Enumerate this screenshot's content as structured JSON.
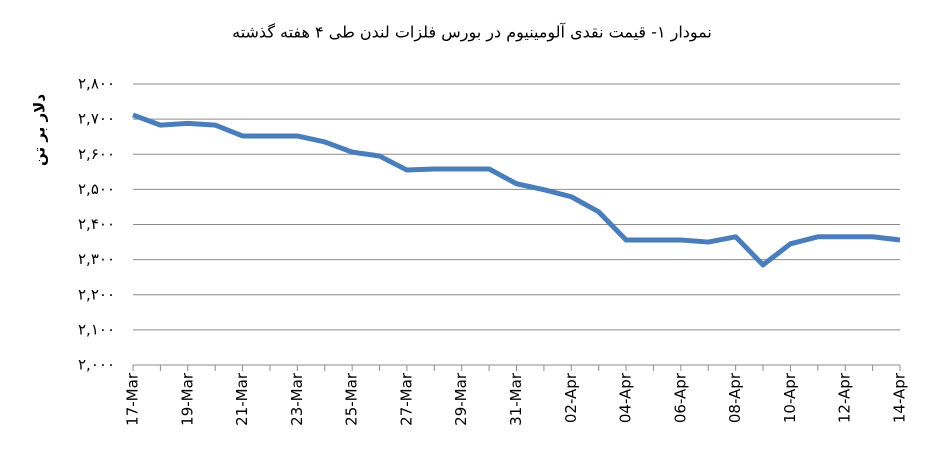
{
  "chart_data": {
    "type": "line",
    "title": "نمودار ۱- قیمت نقدی آلومینیوم در بورس فلزات لندن طی ۴ هفته گذشته",
    "y_label": "دلار بر تن",
    "categories": [
      "17-Mar",
      null,
      "19-Mar",
      null,
      "21-Mar",
      null,
      "23-Mar",
      null,
      "25-Mar",
      null,
      "27-Mar",
      null,
      "29-Mar",
      null,
      "31-Mar",
      null,
      "02-Apr",
      null,
      "04-Apr",
      null,
      "06-Apr",
      null,
      "08-Apr",
      null,
      "10-Apr",
      null,
      "12-Apr",
      null,
      "14-Apr"
    ],
    "series": [
      {
        "name": "Aluminium",
        "color": "#4a7ebb",
        "values": [
          2712,
          2683,
          2688,
          2683,
          2652,
          2652,
          2652,
          2635,
          2606,
          2595,
          2555,
          2558,
          2558,
          2558,
          2516,
          2499,
          2479,
          2436,
          2356,
          2356,
          2356,
          2350,
          2365,
          2285,
          2345,
          2365,
          2365,
          2365,
          2356
        ]
      }
    ],
    "ylim": [
      2000,
      2800
    ],
    "yticks": [
      {
        "value": 2000,
        "label": "۲,۰۰۰"
      },
      {
        "value": 2100,
        "label": "۲,۱۰۰"
      },
      {
        "value": 2200,
        "label": "۲,۲۰۰"
      },
      {
        "value": 2300,
        "label": "۲,۳۰۰"
      },
      {
        "value": 2400,
        "label": "۲,۴۰۰"
      },
      {
        "value": 2500,
        "label": "۲,۵۰۰"
      },
      {
        "value": 2600,
        "label": "۲,۶۰۰"
      },
      {
        "value": 2700,
        "label": "۲,۷۰۰"
      },
      {
        "value": 2800,
        "label": "۲,۸۰۰"
      }
    ],
    "grid": true
  }
}
